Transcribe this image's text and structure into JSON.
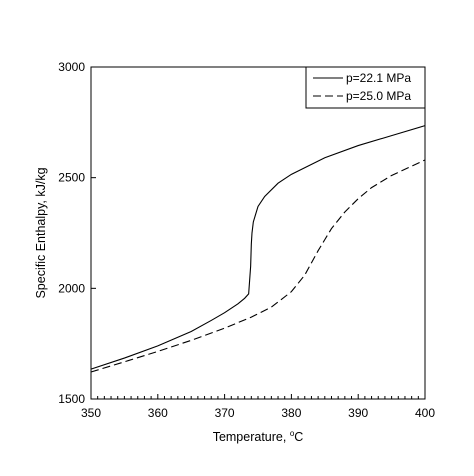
{
  "chart_data": {
    "type": "line",
    "title": "",
    "xlabel": "Temperature, °C",
    "xlabel_main": "Temperature, ",
    "xlabel_sup": "o",
    "xlabel_unit": "C",
    "ylabel": "Specific Enthalpy, kJ/kg",
    "xlim": [
      350,
      400
    ],
    "ylim": [
      1500,
      3000
    ],
    "xticks": [
      350,
      360,
      370,
      380,
      390,
      400
    ],
    "yticks": [
      1500,
      2000,
      2500,
      3000
    ],
    "grid": false,
    "legend_position": "top-right",
    "series": [
      {
        "name": "p=22.1 MPa",
        "style": "solid",
        "color": "#000000",
        "x": [
          350,
          355,
          360,
          365,
          368,
          370,
          372,
          373,
          373.6,
          373.9,
          374.0,
          374.1,
          374.3,
          375,
          376,
          378,
          380,
          385,
          390,
          395,
          400
        ],
        "y": [
          1635,
          1685,
          1740,
          1805,
          1855,
          1890,
          1930,
          1955,
          1975,
          2100,
          2200,
          2250,
          2300,
          2370,
          2415,
          2475,
          2515,
          2590,
          2645,
          2690,
          2735
        ]
      },
      {
        "name": "p=25.0 MPa",
        "style": "dashed",
        "color": "#000000",
        "x": [
          350,
          355,
          360,
          365,
          370,
          374,
          377,
          380,
          382,
          383,
          384,
          385,
          386,
          388,
          390,
          392,
          395,
          400
        ],
        "y": [
          1622,
          1668,
          1715,
          1765,
          1820,
          1870,
          1915,
          1985,
          2060,
          2115,
          2170,
          2220,
          2270,
          2345,
          2405,
          2455,
          2510,
          2580
        ]
      }
    ]
  }
}
